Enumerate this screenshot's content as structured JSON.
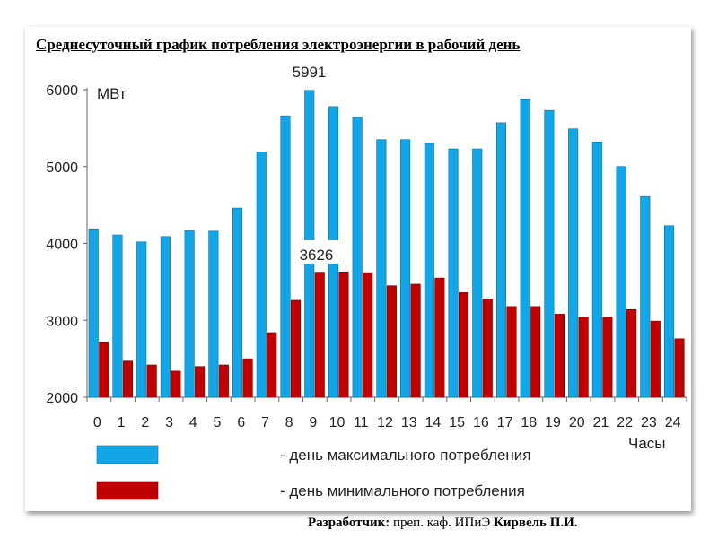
{
  "title": "Среднесуточный график потребления электроэнергии в рабочий день",
  "footer": {
    "label": "Разработчик:",
    "text": " преп. каф. ИПиЭ ",
    "author": "Кирвель П.И."
  },
  "chart_data": {
    "type": "bar",
    "ylabel": "МВт",
    "xlabel": "Часы",
    "ylim": [
      2000,
      6000
    ],
    "yticks": [
      "2000",
      "3000",
      "4000",
      "5000",
      "6000"
    ],
    "categories": [
      "0",
      "1",
      "2",
      "3",
      "4",
      "5",
      "6",
      "7",
      "8",
      "9",
      "10",
      "11",
      "12",
      "13",
      "14",
      "15",
      "16",
      "17",
      "18",
      "19",
      "20",
      "21",
      "22",
      "23",
      "24"
    ],
    "series": [
      {
        "name": "- день максимального потребления",
        "color": "#13a6e6",
        "values": [
          4190,
          4110,
          4020,
          4090,
          4170,
          4160,
          4460,
          5190,
          5660,
          5991,
          5780,
          5640,
          5350,
          5350,
          5300,
          5230,
          5230,
          5570,
          5880,
          5730,
          5490,
          5320,
          5000,
          4610,
          4230
        ]
      },
      {
        "name": "- день минимального потребления",
        "color": "#c00000",
        "values": [
          2720,
          2470,
          2420,
          2340,
          2400,
          2420,
          2500,
          2840,
          3260,
          3626,
          3630,
          3620,
          3450,
          3470,
          3550,
          3360,
          3280,
          3180,
          3180,
          3080,
          3040,
          3040,
          3140,
          2990,
          2760
        ]
      }
    ],
    "annotations": [
      "5991",
      "3626"
    ],
    "grid": false,
    "legend": "bottom"
  }
}
